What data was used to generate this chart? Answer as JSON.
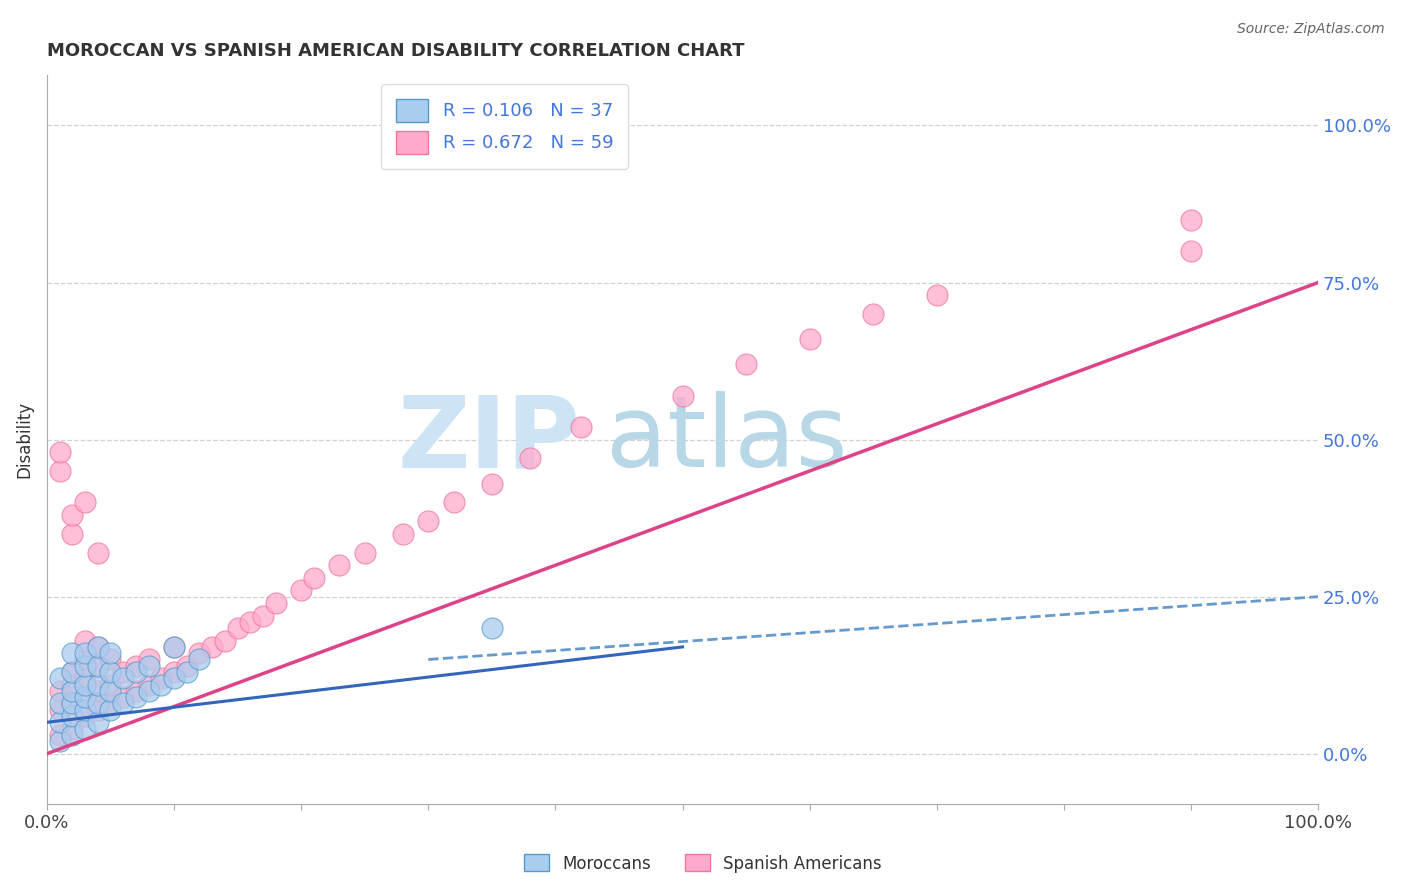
{
  "title": "MOROCCAN VS SPANISH AMERICAN DISABILITY CORRELATION CHART",
  "source": "Source: ZipAtlas.com",
  "ylabel": "Disability",
  "ytick_values": [
    0,
    25,
    50,
    75,
    100
  ],
  "xlim": [
    0,
    100
  ],
  "ylim": [
    -8,
    108
  ],
  "legend_r1": "R = 0.106   N = 37",
  "legend_r2": "R = 0.672   N = 59",
  "moroccans_color": "#aaccee",
  "spanish_color": "#ffaacc",
  "moroccans_edge": "#5599cc",
  "spanish_edge": "#ee7799",
  "trend_moroccans_solid_color": "#3366bb",
  "trend_moroccans_dash_color": "#6699cc",
  "trend_spanish_color": "#dd4488",
  "watermark_color": "#cce4f5",
  "background_color": "#ffffff",
  "label_color": "#4477dd",
  "title_color": "#333333",
  "grid_color": "#cccccc",
  "moroccans_x": [
    1,
    1,
    1,
    1,
    2,
    2,
    2,
    2,
    2,
    2,
    3,
    3,
    3,
    3,
    3,
    3,
    4,
    4,
    4,
    4,
    4,
    5,
    5,
    5,
    5,
    6,
    6,
    7,
    7,
    8,
    8,
    9,
    10,
    10,
    11,
    12,
    35
  ],
  "moroccans_y": [
    2,
    5,
    8,
    12,
    3,
    6,
    8,
    10,
    13,
    16,
    4,
    7,
    9,
    11,
    14,
    16,
    5,
    8,
    11,
    14,
    17,
    7,
    10,
    13,
    16,
    8,
    12,
    9,
    13,
    10,
    14,
    11,
    12,
    17,
    13,
    15,
    20
  ],
  "spanish_x": [
    1,
    1,
    1,
    1,
    1,
    2,
    2,
    2,
    2,
    2,
    2,
    3,
    3,
    3,
    3,
    3,
    3,
    4,
    4,
    4,
    4,
    4,
    5,
    5,
    5,
    6,
    6,
    7,
    7,
    8,
    8,
    9,
    10,
    10,
    11,
    12,
    13,
    14,
    15,
    16,
    17,
    18,
    20,
    21,
    23,
    25,
    28,
    30,
    32,
    35,
    38,
    42,
    50,
    55,
    60,
    65,
    70,
    90,
    90
  ],
  "spanish_y": [
    3,
    7,
    10,
    45,
    48,
    4,
    8,
    11,
    13,
    35,
    38,
    6,
    9,
    12,
    15,
    18,
    40,
    7,
    10,
    14,
    17,
    32,
    8,
    11,
    15,
    9,
    13,
    10,
    14,
    11,
    15,
    12,
    13,
    17,
    14,
    16,
    17,
    18,
    20,
    21,
    22,
    24,
    26,
    28,
    30,
    32,
    35,
    37,
    40,
    43,
    47,
    52,
    57,
    62,
    66,
    70,
    73,
    80,
    85
  ],
  "moroccans_trend_x0": 0,
  "moroccans_trend_y0": 5,
  "moroccans_trend_x1": 50,
  "moroccans_trend_y1": 17,
  "moroccans_dash_x0": 30,
  "moroccans_dash_y0": 15,
  "moroccans_dash_x1": 100,
  "moroccans_dash_y1": 25,
  "spanish_trend_x0": 0,
  "spanish_trend_y0": 0,
  "spanish_trend_x1": 100,
  "spanish_trend_y1": 75
}
